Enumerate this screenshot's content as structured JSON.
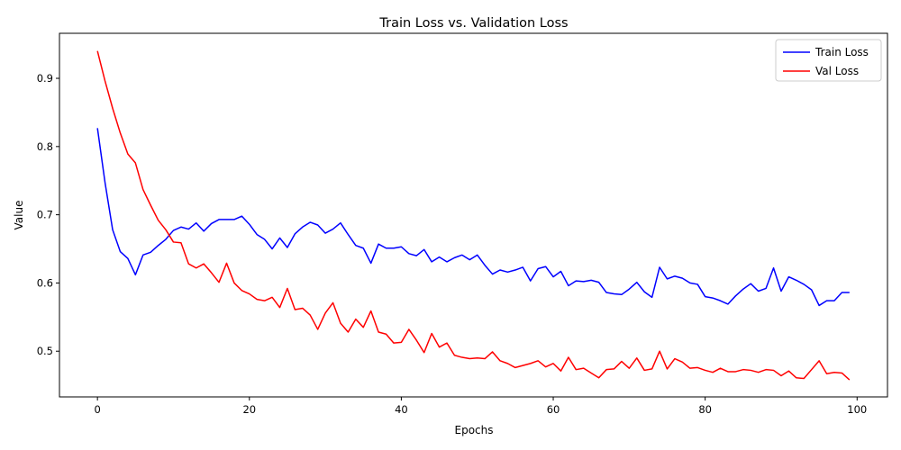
{
  "chart_data": {
    "type": "line",
    "title": "Train Loss vs. Validation Loss",
    "xlabel": "Epochs",
    "ylabel": "Value",
    "xlim": [
      -5,
      104
    ],
    "ylim": [
      0.433,
      0.966
    ],
    "xticks": [
      0,
      20,
      40,
      60,
      80,
      100
    ],
    "yticks": [
      0.5,
      0.6,
      0.7,
      0.8,
      0.9
    ],
    "grid": false,
    "legend_position": "top-right",
    "x": [
      0,
      1,
      2,
      3,
      4,
      5,
      6,
      7,
      8,
      9,
      10,
      11,
      12,
      13,
      14,
      15,
      16,
      17,
      18,
      19,
      20,
      21,
      22,
      23,
      24,
      25,
      26,
      27,
      28,
      29,
      30,
      31,
      32,
      33,
      34,
      35,
      36,
      37,
      38,
      39,
      40,
      41,
      42,
      43,
      44,
      45,
      46,
      47,
      48,
      49,
      50,
      51,
      52,
      53,
      54,
      55,
      56,
      57,
      58,
      59,
      60,
      61,
      62,
      63,
      64,
      65,
      66,
      67,
      68,
      69,
      70,
      71,
      72,
      73,
      74,
      75,
      76,
      77,
      78,
      79,
      80,
      81,
      82,
      83,
      84,
      85,
      86,
      87,
      88,
      89,
      90,
      91,
      92,
      93,
      94,
      95,
      96,
      97,
      98,
      99
    ],
    "series": [
      {
        "name": "Train Loss",
        "color": "#0000ff",
        "values": [
          0.827,
          0.747,
          0.678,
          0.646,
          0.636,
          0.612,
          0.641,
          0.645,
          0.655,
          0.664,
          0.677,
          0.682,
          0.679,
          0.688,
          0.676,
          0.687,
          0.693,
          0.693,
          0.693,
          0.698,
          0.686,
          0.671,
          0.664,
          0.65,
          0.666,
          0.652,
          0.672,
          0.682,
          0.689,
          0.685,
          0.673,
          0.679,
          0.688,
          0.671,
          0.655,
          0.651,
          0.629,
          0.657,
          0.651,
          0.651,
          0.653,
          0.643,
          0.64,
          0.649,
          0.631,
          0.638,
          0.631,
          0.637,
          0.641,
          0.634,
          0.641,
          0.626,
          0.613,
          0.619,
          0.616,
          0.619,
          0.623,
          0.603,
          0.621,
          0.624,
          0.609,
          0.617,
          0.596,
          0.603,
          0.602,
          0.604,
          0.601,
          0.586,
          0.584,
          0.583,
          0.591,
          0.601,
          0.587,
          0.579,
          0.623,
          0.606,
          0.61,
          0.607,
          0.6,
          0.598,
          0.58,
          0.578,
          0.574,
          0.569,
          0.581,
          0.591,
          0.599,
          0.588,
          0.592,
          0.622,
          0.588,
          0.609,
          0.604,
          0.598,
          0.59,
          0.567,
          0.574,
          0.574,
          0.586,
          0.586
        ]
      },
      {
        "name": "Val Loss",
        "color": "#ff0000",
        "values": [
          0.94,
          0.896,
          0.856,
          0.82,
          0.789,
          0.776,
          0.737,
          0.714,
          0.692,
          0.678,
          0.66,
          0.659,
          0.628,
          0.622,
          0.628,
          0.615,
          0.601,
          0.629,
          0.6,
          0.589,
          0.584,
          0.576,
          0.574,
          0.579,
          0.564,
          0.592,
          0.561,
          0.563,
          0.553,
          0.532,
          0.556,
          0.571,
          0.541,
          0.528,
          0.547,
          0.535,
          0.559,
          0.528,
          0.525,
          0.512,
          0.513,
          0.532,
          0.516,
          0.498,
          0.526,
          0.506,
          0.512,
          0.494,
          0.491,
          0.489,
          0.49,
          0.489,
          0.499,
          0.486,
          0.482,
          0.476,
          0.479,
          0.482,
          0.486,
          0.477,
          0.482,
          0.471,
          0.491,
          0.473,
          0.475,
          0.468,
          0.461,
          0.473,
          0.474,
          0.485,
          0.475,
          0.49,
          0.472,
          0.474,
          0.5,
          0.474,
          0.489,
          0.484,
          0.475,
          0.476,
          0.472,
          0.469,
          0.475,
          0.47,
          0.47,
          0.473,
          0.472,
          0.469,
          0.473,
          0.472,
          0.464,
          0.471,
          0.461,
          0.46,
          0.473,
          0.486,
          0.467,
          0.469,
          0.468,
          0.458
        ]
      }
    ]
  }
}
